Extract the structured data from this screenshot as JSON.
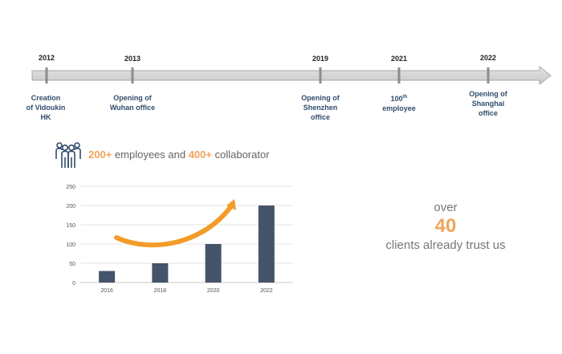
{
  "timeline": {
    "milestones": [
      {
        "year": "2012",
        "lines": [
          "Creation",
          "of Vidoukin",
          "HK"
        ]
      },
      {
        "year": "2013",
        "lines": [
          "Opening of",
          "Wuhan office"
        ]
      },
      {
        "year": "2019",
        "lines": [
          "Opening of",
          "Shenzhen",
          "office"
        ]
      },
      {
        "year": "2021",
        "lines": [
          "100",
          "employee"
        ],
        "sup": "th"
      },
      {
        "year": "2022",
        "lines": [
          "Opening of",
          "Shanghai",
          "office"
        ]
      }
    ]
  },
  "stats": {
    "employees_value": "200+",
    "employees_text": " employees and ",
    "collab_value": "400+",
    "collab_text": " collaborator"
  },
  "chart_data": {
    "type": "bar",
    "categories": [
      "2016",
      "2018",
      "2020",
      "2022"
    ],
    "values": [
      30,
      50,
      100,
      200
    ],
    "title": "",
    "xlabel": "",
    "ylabel": "",
    "ylim": [
      0,
      250
    ],
    "yticks": [
      0,
      50,
      100,
      150,
      200,
      250
    ],
    "bar_color": "#44546a",
    "grid": true
  },
  "clients": {
    "over": "over",
    "count": "40",
    "text": "clients already trust us"
  },
  "colors": {
    "accent": "#f0a35a",
    "navy": "#2f4d6b",
    "bar": "#44546a",
    "arrow": "#f39c2a"
  }
}
